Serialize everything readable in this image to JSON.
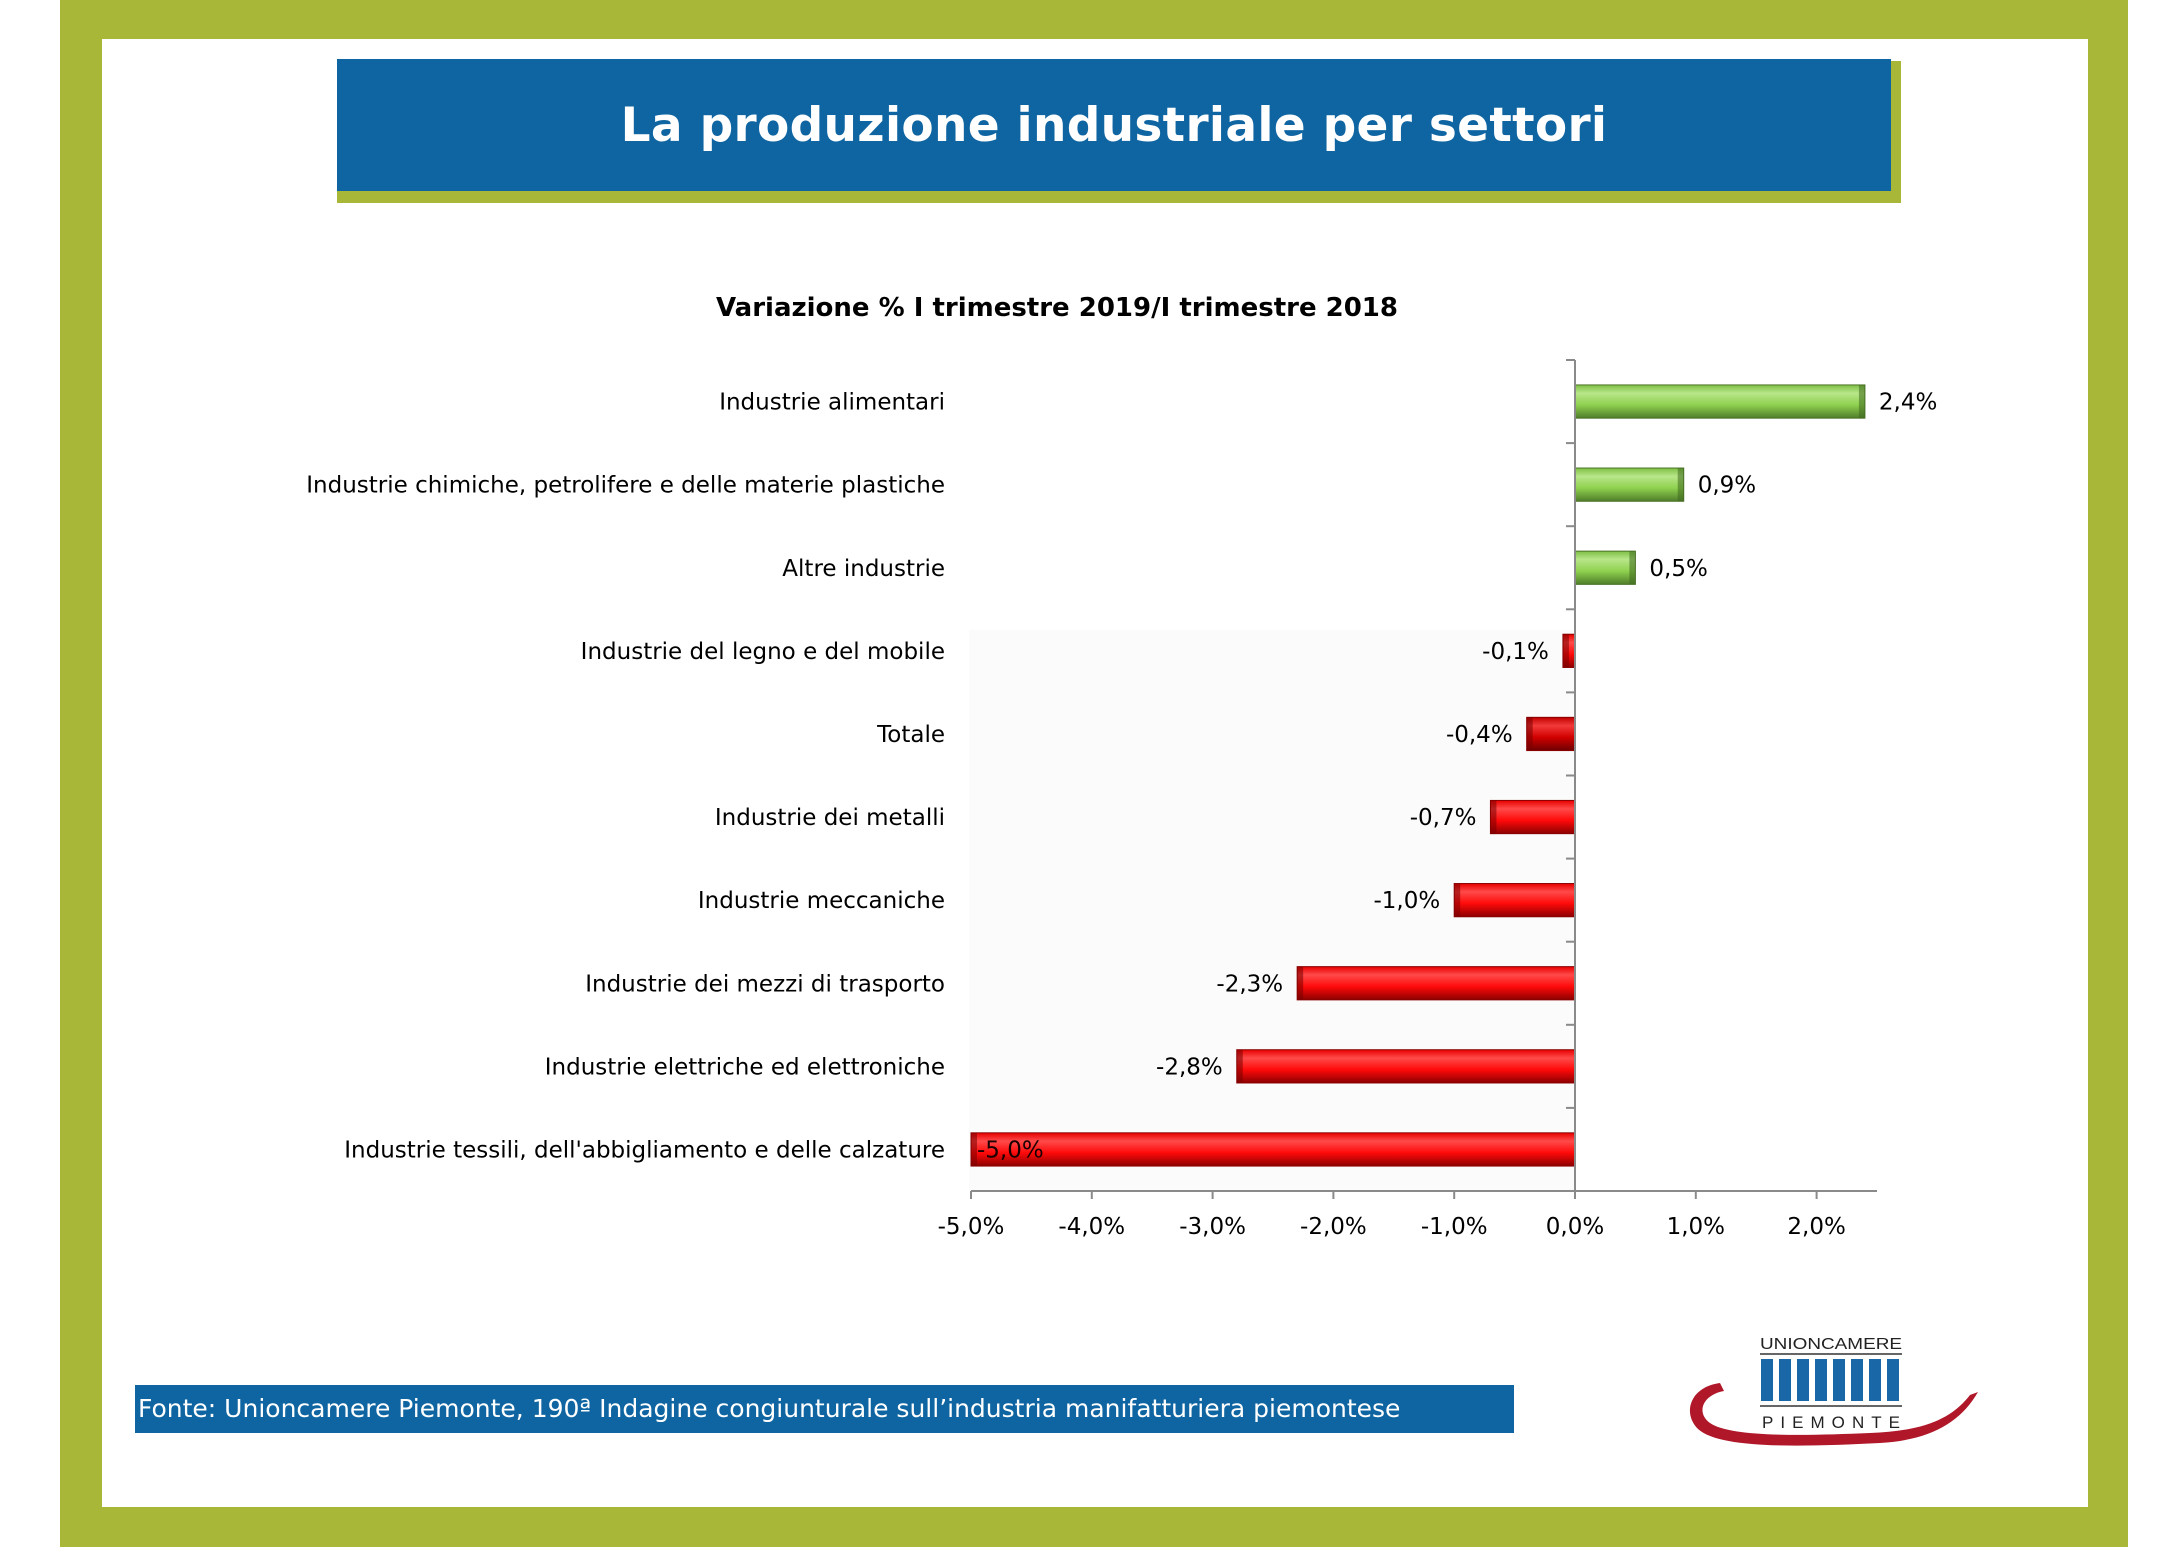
{
  "slide": {
    "title": "La produzione industriale per settori",
    "source": "Fonte: Unioncamere Piemonte, 190ª Indagine congiunturale sull’industria manifatturiera piemontese",
    "logo": {
      "top_text": "UNIONCAMERE",
      "bottom_text": "PIEMONTE"
    }
  },
  "colors": {
    "frame": "#a8b738",
    "banner": "#0f65a1",
    "positive": "#8fd14f",
    "negative": "#ff1010",
    "total": "#d40000",
    "logo_blue": "#1a67a8",
    "logo_red": "#b0182a"
  },
  "chart_data": {
    "type": "bar",
    "orientation": "horizontal",
    "title": "Variazione % I trimestre 2019/I trimestre 2018",
    "xlabel": "",
    "ylabel": "",
    "categories": [
      "Industrie alimentari",
      "Industrie chimiche, petrolifere e delle materie plastiche",
      "Altre industrie",
      "Industrie del legno e del mobile",
      "Totale",
      "Industrie dei metalli",
      "Industrie meccaniche",
      "Industrie dei mezzi di trasporto",
      "Industrie elettriche ed elettroniche",
      "Industrie tessili, dell'abbigliamento e delle calzature"
    ],
    "values": [
      2.4,
      0.9,
      0.5,
      -0.1,
      -0.4,
      -0.7,
      -1.0,
      -2.3,
      -2.8,
      -5.0
    ],
    "data_labels": [
      "2,4%",
      "0,9%",
      "0,5%",
      "-0,1%",
      "-0,4%",
      "-0,7%",
      "-1,0%",
      "-2,3%",
      "-2,8%",
      "-5,0%"
    ],
    "xlim": [
      -5.0,
      2.5
    ],
    "x_ticks": [
      -5,
      -4,
      -3,
      -2,
      -1,
      0,
      1,
      2
    ],
    "x_tick_labels": [
      "-5,0%",
      "-4,0%",
      "-3,0%",
      "-2,0%",
      "-1,0%",
      "0,0%",
      "1,0%",
      "2,0%"
    ],
    "grid": false,
    "legend": "none"
  }
}
